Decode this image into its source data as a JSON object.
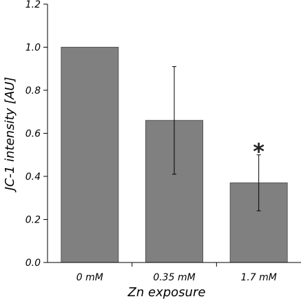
{
  "chart_data": {
    "type": "bar",
    "title": "",
    "xlabel": "Zn exposure",
    "ylabel": "JC-1 intensity [AU]",
    "categories": [
      "0 mM",
      "0.35 mM",
      "1.7 mM"
    ],
    "values": [
      1.0,
      0.66,
      0.37
    ],
    "error_upper": [
      1.0,
      0.91,
      0.5
    ],
    "error_lower": [
      1.0,
      0.41,
      0.24
    ],
    "annotations": [
      "",
      "",
      "*"
    ],
    "ylim": [
      0,
      1.2
    ],
    "yticks": [
      "0.0",
      "0.2",
      "0.4",
      "0.6",
      "0.8",
      "1.0",
      "1.2"
    ],
    "grid": false,
    "legend": "none",
    "bar_color": "#808080",
    "error_color": "#000000"
  }
}
